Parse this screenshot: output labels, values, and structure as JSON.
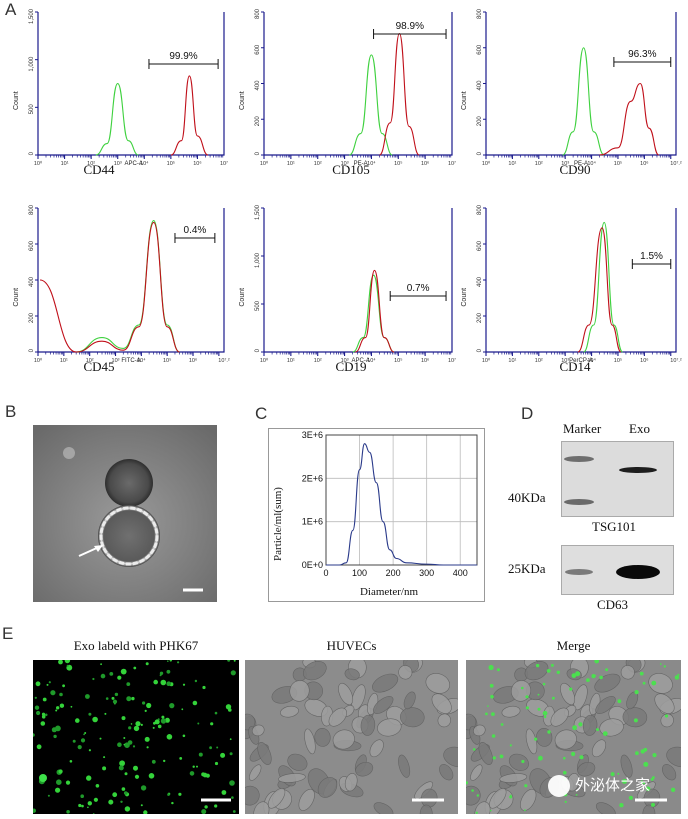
{
  "panels": {
    "a": "A",
    "b": "B",
    "c": "C",
    "d": "D",
    "e": "E"
  },
  "flow": {
    "count_label": "Count",
    "plots": [
      {
        "marker": "CD44",
        "channel": "APC-A",
        "gate_pct": "99.9%",
        "y_ticks": [
          "1,500",
          "1,000",
          "500",
          "0"
        ],
        "x_ticks": [
          "10⁰",
          "10¹",
          "10²",
          "10³",
          "10⁴",
          "10⁵",
          "10⁶",
          "10⁷"
        ]
      },
      {
        "marker": "CD105",
        "channel": "PE-A",
        "gate_pct": "98.9%",
        "y_ticks": [
          "800",
          "600",
          "400",
          "200",
          "0"
        ],
        "x_ticks": [
          "10⁰",
          "10¹",
          "10²",
          "10³",
          "10⁴",
          "10⁵",
          "10⁶",
          "10⁷"
        ]
      },
      {
        "marker": "CD90",
        "channel": "PE-A",
        "gate_pct": "96.3%",
        "y_ticks": [
          "800",
          "600",
          "400",
          "200",
          "0"
        ],
        "x_ticks": [
          "10⁰",
          "10¹",
          "10²",
          "10³",
          "10⁴",
          "10⁵",
          "10⁶",
          "10⁷.²"
        ]
      },
      {
        "marker": "CD45",
        "channel": "FITC-A",
        "gate_pct": "0.4%",
        "y_ticks": [
          "800",
          "600",
          "400",
          "200",
          "0"
        ],
        "x_ticks": [
          "10⁰",
          "10¹",
          "10²",
          "10³",
          "10⁴",
          "10⁵",
          "10⁶",
          "10⁷.²"
        ]
      },
      {
        "marker": "CD19",
        "channel": "APC-A",
        "gate_pct": "0.7%",
        "y_ticks": [
          "1,500",
          "1,000",
          "500",
          "0"
        ],
        "x_ticks": [
          "10⁰",
          "10¹",
          "10²",
          "10³",
          "10⁴",
          "10⁵",
          "10⁶",
          "10⁷"
        ]
      },
      {
        "marker": "CD14",
        "channel": "PerCP-A",
        "gate_pct": "1.5%",
        "y_ticks": [
          "800",
          "600",
          "400",
          "200",
          "0"
        ],
        "x_ticks": [
          "10⁰",
          "10¹",
          "10²",
          "10³",
          "10⁴",
          "10⁵",
          "10⁶",
          "10⁷.²"
        ]
      }
    ]
  },
  "nta": {
    "ylabel": "Particle/ml(sum)",
    "xlabel": "Diameter/nm",
    "y_ticks": [
      "3E+6",
      "2E+6",
      "1E+6",
      "0E+0"
    ],
    "x_ticks": [
      "0",
      "100",
      "200",
      "300",
      "400"
    ]
  },
  "western": {
    "lane_marker": "Marker",
    "lane_exo": "Exo",
    "kda_top": "40KDa",
    "kda_bottom": "25KDa",
    "protein_top": "TSG101",
    "protein_bottom": "CD63"
  },
  "fluorescence": {
    "titles": [
      "Exo labeld with PHK67",
      "HUVECs",
      "Merge"
    ],
    "watermark": "外泌体之家"
  },
  "colors": {
    "positive": "#c0101a",
    "control": "#3fd13f",
    "axis": "#1a1a8c",
    "nta_line": "#2a3a8a"
  },
  "chart_data": [
    {
      "type": "line",
      "title": "CD44",
      "xlabel": "APC-A",
      "ylabel": "Count",
      "x_scale": "log",
      "xlim": [
        1,
        10000000
      ],
      "ylim": [
        0,
        1500
      ],
      "series": [
        {
          "color": "#3fd13f",
          "x": [
            150,
            400,
            1000,
            2500,
            6000
          ],
          "y": [
            0,
            120,
            750,
            150,
            0
          ]
        },
        {
          "color": "#c0101a",
          "x": [
            100000,
            250000,
            500000,
            1000000,
            2500000
          ],
          "y": [
            0,
            150,
            830,
            200,
            0
          ]
        }
      ],
      "gate": {
        "label": "99.9%",
        "range": [
          15000,
          6000000
        ]
      }
    },
    {
      "type": "line",
      "title": "CD105",
      "xlabel": "PE-A",
      "ylabel": "Count",
      "x_scale": "log",
      "xlim": [
        1,
        10000000
      ],
      "ylim": [
        0,
        800
      ],
      "series": [
        {
          "color": "#3fd13f",
          "x": [
            1500,
            4000,
            10000,
            25000,
            60000
          ],
          "y": [
            0,
            120,
            560,
            120,
            0
          ]
        },
        {
          "color": "#c0101a",
          "x": [
            20000,
            50000,
            110000,
            250000,
            600000
          ],
          "y": [
            0,
            180,
            680,
            160,
            0
          ]
        }
      ],
      "gate": {
        "label": "98.9%",
        "range": [
          12000,
          6000000
        ]
      }
    },
    {
      "type": "line",
      "title": "CD90",
      "xlabel": "PE-A",
      "ylabel": "Count",
      "x_scale": "log",
      "xlim": [
        1,
        15800000
      ],
      "ylim": [
        0,
        800
      ],
      "series": [
        {
          "color": "#3fd13f",
          "x": [
            800,
            2000,
            5000,
            12000,
            30000
          ],
          "y": [
            0,
            130,
            600,
            130,
            0
          ]
        },
        {
          "color": "#c0101a",
          "x": [
            20000,
            100000,
            300000,
            700000,
            1500000,
            3500000
          ],
          "y": [
            0,
            40,
            300,
            400,
            150,
            0
          ]
        }
      ],
      "gate": {
        "label": "96.3%",
        "range": [
          70000,
          10000000
        ]
      }
    },
    {
      "type": "line",
      "title": "CD45",
      "xlabel": "FITC-A",
      "ylabel": "Count",
      "x_scale": "log",
      "xlim": [
        1,
        15800000
      ],
      "ylim": [
        0,
        800
      ],
      "series": [
        {
          "color": "#3fd13f",
          "x": [
            30,
            300,
            2000,
            8000,
            30000,
            100000,
            300000
          ],
          "y": [
            0,
            80,
            20,
            150,
            730,
            150,
            0
          ]
        },
        {
          "color": "#c0101a",
          "x": [
            1.2,
            30,
            300,
            2000,
            8000,
            30000,
            100000,
            300000
          ],
          "y": [
            400,
            0,
            60,
            10,
            140,
            720,
            140,
            0
          ]
        }
      ],
      "gate": {
        "label": "0.4%",
        "range": [
          200000,
          7000000
        ]
      }
    },
    {
      "type": "line",
      "title": "CD19",
      "xlabel": "APC-A",
      "ylabel": "Count",
      "x_scale": "log",
      "xlim": [
        1,
        10000000
      ],
      "ylim": [
        0,
        1500
      ],
      "series": [
        {
          "color": "#3fd13f",
          "x": [
            2000,
            5000,
            12000,
            30000,
            70000
          ],
          "y": [
            0,
            150,
            800,
            150,
            0
          ]
        },
        {
          "color": "#c0101a",
          "x": [
            2500,
            6000,
            13000,
            30000,
            70000
          ],
          "y": [
            0,
            150,
            850,
            150,
            0
          ]
        }
      ],
      "gate": {
        "label": "0.7%",
        "range": [
          50000,
          6000000
        ]
      }
    },
    {
      "type": "line",
      "title": "CD14",
      "xlabel": "PerCP-A",
      "ylabel": "Count",
      "x_scale": "log",
      "xlim": [
        1,
        15800000
      ],
      "ylim": [
        0,
        800
      ],
      "series": [
        {
          "color": "#3fd13f",
          "x": [
            5000,
            12000,
            30000,
            70000,
            150000
          ],
          "y": [
            0,
            150,
            720,
            150,
            0
          ]
        },
        {
          "color": "#c0101a",
          "x": [
            3000,
            8000,
            25000,
            60000,
            130000
          ],
          "y": [
            0,
            150,
            690,
            150,
            0
          ]
        }
      ],
      "gate": {
        "label": "1.5%",
        "range": [
          350000,
          10000000
        ]
      }
    },
    {
      "type": "line",
      "title": "",
      "xlabel": "Diameter/nm",
      "ylabel": "Particle/ml(sum)",
      "xlim": [
        0,
        450
      ],
      "ylim": [
        0,
        3000000
      ],
      "grid": true,
      "series": [
        {
          "color": "#2a3a8a",
          "x": [
            0,
            40,
            60,
            80,
            100,
            115,
            130,
            150,
            170,
            190,
            210,
            240,
            300,
            350,
            450
          ],
          "y": [
            0,
            0,
            50000,
            800000,
            2200000,
            2800000,
            2600000,
            1900000,
            1000000,
            350000,
            150000,
            50000,
            20000,
            0,
            0
          ]
        }
      ]
    }
  ]
}
